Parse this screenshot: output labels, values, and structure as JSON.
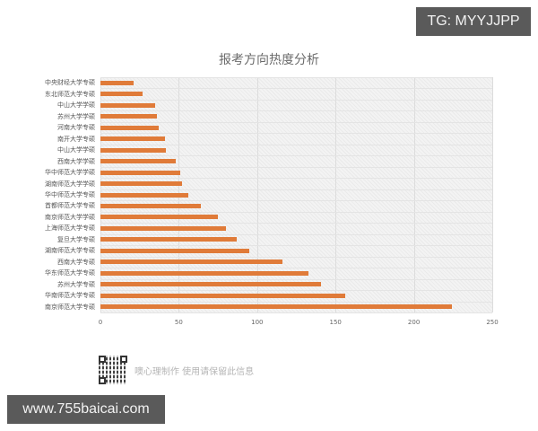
{
  "badges": {
    "tg": "TG: MYYJJPP",
    "site": "www.755baicai.com"
  },
  "footer": {
    "note": "噢心理制作 使用请保留此信息"
  },
  "colors": {
    "bar": "#e07b39",
    "plot_bg": "#f3f3f3",
    "badge_bg": "#5a5a5a"
  },
  "chart_data": {
    "type": "bar",
    "orientation": "horizontal",
    "title": "报考方向热度分析",
    "xlabel": "",
    "ylabel": "",
    "xlim": [
      0,
      250
    ],
    "xticks": [
      0,
      50,
      100,
      150,
      200,
      250
    ],
    "grid": true,
    "legend": null,
    "categories": [
      "中央财经大学专硕",
      "东北师范大学专硕",
      "中山大学学硕",
      "苏州大学学硕",
      "河南大学专硕",
      "南开大学专硕",
      "中山大学学硕",
      "西南大学学硕",
      "华中师范大学学硕",
      "湖南师范大学学硕",
      "华中师范大学专硕",
      "首都师范大学专硕",
      "南京师范大学学硕",
      "上海师范大学专硕",
      "复旦大学专硕",
      "湖南师范大学专硕",
      "西南大学专硕",
      "华东师范大学专硕",
      "苏州大学专硕",
      "华南师范大学专硕",
      "南京师范大学专硕"
    ],
    "values": [
      21,
      27,
      35,
      36,
      37,
      41,
      42,
      48,
      51,
      52,
      56,
      64,
      75,
      80,
      87,
      95,
      116,
      133,
      141,
      156,
      224
    ]
  }
}
